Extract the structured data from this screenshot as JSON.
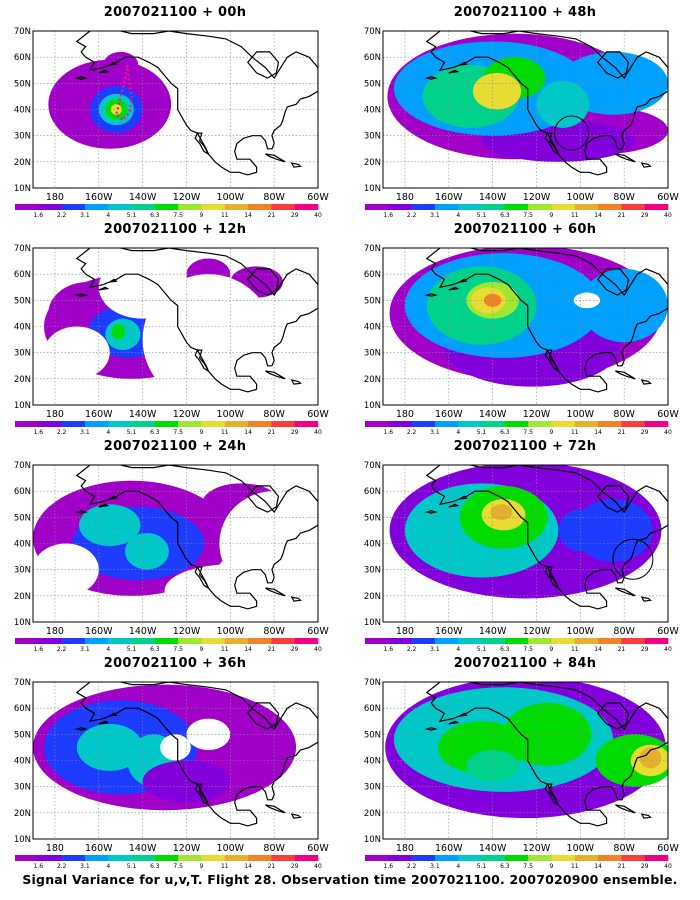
{
  "figure": {
    "caption": "Signal Variance for u,v,T. Flight 28. Observation time 2007021100. 2007020900 ensemble."
  },
  "axes": {
    "lat_labels": [
      "70N",
      "60N",
      "50N",
      "40N",
      "30N",
      "20N",
      "10N"
    ],
    "lon_labels": [
      "180",
      "160W",
      "140W",
      "120W",
      "100W",
      "80W",
      "60W"
    ]
  },
  "colorbar": {
    "levels": [
      "1.6",
      "2.2",
      "3.1",
      "4",
      "5.1",
      "6.3",
      "7.5",
      "9",
      "11",
      "14",
      "21",
      "29",
      "40"
    ],
    "colors": [
      "#a000c8",
      "#8200dc",
      "#1e3cff",
      "#00a0ff",
      "#00c8c8",
      "#00d28c",
      "#00dc00",
      "#a0e632",
      "#e6dc32",
      "#e6af2d",
      "#f08228",
      "#fa3c3c",
      "#f00082"
    ]
  },
  "panels": [
    {
      "title": "2007021100 + 00h",
      "lead_hours": 0
    },
    {
      "title": "2007021100 + 48h",
      "lead_hours": 48
    },
    {
      "title": "2007021100 + 12h",
      "lead_hours": 12
    },
    {
      "title": "2007021100 + 60h",
      "lead_hours": 60
    },
    {
      "title": "2007021100 + 24h",
      "lead_hours": 24
    },
    {
      "title": "2007021100 + 72h",
      "lead_hours": 72
    },
    {
      "title": "2007021100 + 36h",
      "lead_hours": 36
    },
    {
      "title": "2007021100 + 84h",
      "lead_hours": 84
    }
  ]
}
